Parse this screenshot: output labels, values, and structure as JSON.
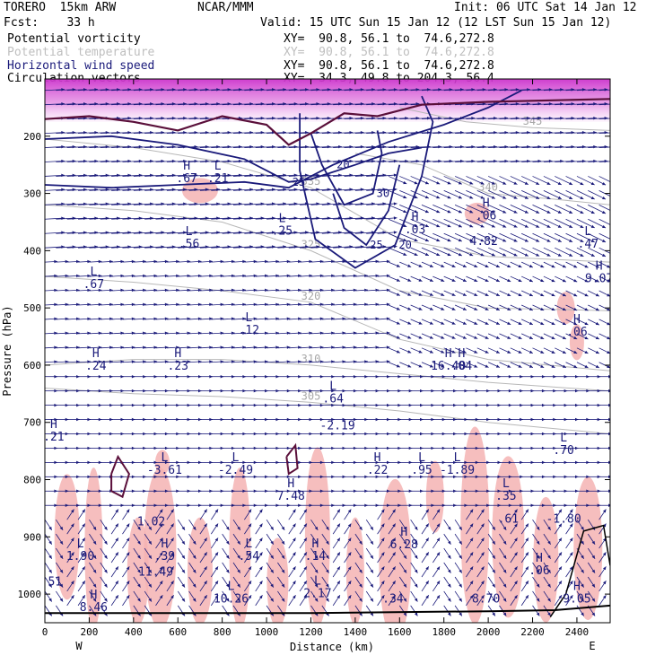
{
  "header": {
    "model": "TORERO  15km ARW",
    "center": "NCAR/MMM",
    "init": "Init: 06 UTC Sat 14 Jan 12",
    "fcst": "Fcst:    33 h",
    "valid": "Valid: 15 UTC Sun 15 Jan 12 (12 LST Sun 15 Jan 12)"
  },
  "fields": [
    {
      "name": "Potential vorticity",
      "xy": "XY=  90.8, 56.1 to  74.6,272.8",
      "color": "#000000"
    },
    {
      "name": "Potential temperature",
      "xy": "XY=  90.8, 56.1 to  74.6,272.8",
      "color": "#bfbfbf"
    },
    {
      "name": "Horizontal wind speed",
      "xy": "XY=  90.8, 56.1 to  74.6,272.8",
      "color": "#1a1a7a"
    },
    {
      "name": "Circulation vectors",
      "xy": "XY=  34.3, 49.8 to 204.3, 56.4",
      "color": "#000000"
    }
  ],
  "chart_data": {
    "type": "cross-section",
    "xlabel": "Distance (km)",
    "ylabel": "Pressure (hPa)",
    "xlim": [
      0,
      2550
    ],
    "ylim": [
      1050,
      100
    ],
    "x_ticks": [
      0,
      200,
      400,
      600,
      800,
      1000,
      1200,
      1400,
      1600,
      1800,
      2000,
      2200,
      2400
    ],
    "y_ticks": [
      200,
      300,
      400,
      500,
      600,
      700,
      800,
      900,
      1000
    ],
    "x_endpoints": {
      "left": "W",
      "right": "E"
    },
    "theta_contours": [
      {
        "label": "305",
        "points": [
          [
            0,
            640
          ],
          [
            400,
            650
          ],
          [
            800,
            655
          ],
          [
            1200,
            665
          ],
          [
            1600,
            680
          ],
          [
            2000,
            700
          ],
          [
            2550,
            720
          ]
        ]
      },
      {
        "label": "310",
        "points": [
          [
            0,
            600
          ],
          [
            400,
            590
          ],
          [
            800,
            590
          ],
          [
            1200,
            600
          ],
          [
            1600,
            615
          ],
          [
            2000,
            630
          ],
          [
            2550,
            645
          ]
        ]
      },
      {
        "label": "320",
        "points": [
          [
            0,
            445
          ],
          [
            400,
            455
          ],
          [
            800,
            470
          ],
          [
            1200,
            490
          ],
          [
            1600,
            555
          ],
          [
            2000,
            590
          ],
          [
            2550,
            610
          ]
        ]
      },
      {
        "label": "325",
        "points": [
          [
            0,
            320
          ],
          [
            400,
            330
          ],
          [
            800,
            350
          ],
          [
            1200,
            400
          ],
          [
            1600,
            470
          ],
          [
            2000,
            500
          ],
          [
            2550,
            505
          ]
        ]
      },
      {
        "label": "335",
        "points": [
          [
            0,
            205
          ],
          [
            400,
            220
          ],
          [
            800,
            245
          ],
          [
            1200,
            290
          ],
          [
            1600,
            380
          ],
          [
            2000,
            410
          ],
          [
            2550,
            420
          ]
        ]
      },
      {
        "label": "340",
        "points": [
          [
            1400,
            230
          ],
          [
            1700,
            250
          ],
          [
            2000,
            300
          ],
          [
            2300,
            310
          ],
          [
            2550,
            320
          ]
        ]
      },
      {
        "label": "345",
        "points": [
          [
            1600,
            150
          ],
          [
            1900,
            175
          ],
          [
            2200,
            185
          ],
          [
            2550,
            190
          ]
        ]
      }
    ],
    "wind_speed_contours": [
      {
        "label": "20",
        "points": [
          [
            0,
            285
          ],
          [
            300,
            290
          ],
          [
            600,
            285
          ],
          [
            900,
            280
          ],
          [
            1100,
            290
          ],
          [
            1300,
            250
          ],
          [
            1550,
            210
          ],
          [
            1800,
            180
          ],
          [
            2000,
            150
          ],
          [
            2150,
            120
          ]
        ]
      },
      {
        "label": "25",
        "points": [
          [
            0,
            205
          ],
          [
            300,
            200
          ],
          [
            600,
            215
          ],
          [
            900,
            240
          ],
          [
            1100,
            280
          ],
          [
            1200,
            275
          ],
          [
            1400,
            250
          ],
          [
            1550,
            230
          ],
          [
            1700,
            220
          ]
        ]
      },
      {
        "label": "25",
        "points": [
          [
            1300,
            300
          ],
          [
            1350,
            360
          ],
          [
            1450,
            390
          ],
          [
            1550,
            330
          ],
          [
            1600,
            250
          ]
        ]
      },
      {
        "label": "30",
        "points": [
          [
            1200,
            195
          ],
          [
            1250,
            250
          ],
          [
            1350,
            320
          ],
          [
            1480,
            300
          ],
          [
            1520,
            230
          ],
          [
            1500,
            190
          ]
        ]
      },
      {
        "label": "20",
        "points": [
          [
            1150,
            160
          ],
          [
            1150,
            260
          ],
          [
            1220,
            380
          ],
          [
            1400,
            430
          ],
          [
            1580,
            390
          ],
          [
            1700,
            270
          ],
          [
            1750,
            175
          ],
          [
            1700,
            130
          ]
        ]
      }
    ],
    "hl_labels": [
      {
        "mark": "L",
        "value": ".56",
        "x": 650,
        "y": 395
      },
      {
        "mark": "L",
        "value": ".67",
        "x": 220,
        "y": 465
      },
      {
        "mark": "H",
        "value": ".67",
        "x": 640,
        "y": 280
      },
      {
        "mark": "L",
        "value": ".21",
        "x": 780,
        "y": 280
      },
      {
        "mark": "L",
        "value": ".25",
        "x": 1070,
        "y": 372
      },
      {
        "mark": "L",
        "value": ".12",
        "x": 920,
        "y": 545
      },
      {
        "mark": "H",
        "value": ".24",
        "x": 230,
        "y": 608
      },
      {
        "mark": "H",
        "value": ".23",
        "x": 600,
        "y": 608
      },
      {
        "mark": "H",
        "value": ".03",
        "x": 1670,
        "y": 370
      },
      {
        "mark": "H",
        "value": ".06",
        "x": 1990,
        "y": 345
      },
      {
        "mark": "",
        "value": "4.82",
        "x": 1980,
        "y": 390
      },
      {
        "mark": "L",
        "value": ".47",
        "x": 2450,
        "y": 395
      },
      {
        "mark": "H",
        "value": "9.07",
        "x": 2500,
        "y": 455
      },
      {
        "mark": "H",
        "value": ".06",
        "x": 2400,
        "y": 548
      },
      {
        "mark": "H",
        "value": "16.40",
        "x": 1820,
        "y": 608
      },
      {
        "mark": "H",
        "value": ".04",
        "x": 1880,
        "y": 608
      },
      {
        "mark": "L",
        "value": ".64",
        "x": 1300,
        "y": 665
      },
      {
        "mark": "",
        "value": "-2.19",
        "x": 1320,
        "y": 712
      },
      {
        "mark": "H",
        "value": ".21",
        "x": 40,
        "y": 732
      },
      {
        "mark": "L",
        "value": "-3.61",
        "x": 540,
        "y": 790
      },
      {
        "mark": "L",
        "value": "-2.49",
        "x": 860,
        "y": 790
      },
      {
        "mark": "H",
        "value": ".22",
        "x": 1500,
        "y": 790
      },
      {
        "mark": "L",
        "value": ".95",
        "x": 1700,
        "y": 790
      },
      {
        "mark": "L",
        "value": "-1.89",
        "x": 1860,
        "y": 790
      },
      {
        "mark": "L",
        "value": ".70",
        "x": 2340,
        "y": 755
      },
      {
        "mark": "H",
        "value": "7.48",
        "x": 1110,
        "y": 835
      },
      {
        "mark": "L",
        "value": ".35",
        "x": 2080,
        "y": 835
      },
      {
        "mark": "",
        "value": ".61",
        "x": 2090,
        "y": 875
      },
      {
        "mark": "",
        "value": "-1.80",
        "x": 2340,
        "y": 875
      },
      {
        "mark": "",
        "value": "1.02",
        "x": 480,
        "y": 880
      },
      {
        "mark": "L",
        "value": "1.90",
        "x": 160,
        "y": 940
      },
      {
        "mark": "H",
        "value": ".39",
        "x": 540,
        "y": 940
      },
      {
        "mark": "",
        "value": "11.49",
        "x": 500,
        "y": 968
      },
      {
        "mark": "L",
        "value": ".54",
        "x": 920,
        "y": 940
      },
      {
        "mark": "H",
        "value": ".14",
        "x": 1220,
        "y": 940
      },
      {
        "mark": "H",
        "value": "6.28",
        "x": 1620,
        "y": 920
      },
      {
        "mark": "H",
        "value": ".06",
        "x": 2230,
        "y": 965
      },
      {
        "mark": "",
        "value": ".51",
        "x": 30,
        "y": 985
      },
      {
        "mark": "H",
        "value": "8.46",
        "x": 220,
        "y": 1030
      },
      {
        "mark": "L",
        "value": "10.26",
        "x": 840,
        "y": 1015
      },
      {
        "mark": "L",
        "value": "2.17",
        "x": 1230,
        "y": 1005
      },
      {
        "mark": "",
        "value": ".34",
        "x": 1570,
        "y": 1015
      },
      {
        "mark": "",
        "value": "8.70",
        "x": 1990,
        "y": 1015
      },
      {
        "mark": "H",
        "value": "9.05",
        "x": 2400,
        "y": 1015
      }
    ],
    "grid": false,
    "legend": "none"
  }
}
